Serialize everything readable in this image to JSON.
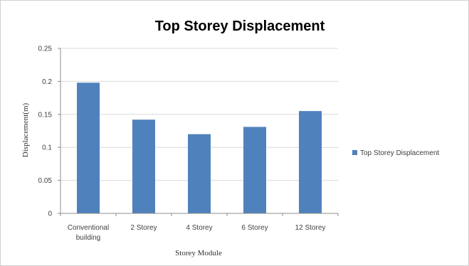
{
  "chart_data": {
    "type": "bar",
    "title": "Top Storey Displacement",
    "xlabel": "Storey Module",
    "ylabel": "Displacement(m)",
    "categories": [
      "Conventional building",
      "2 Storey",
      "4 Storey",
      "6 Storey",
      "12 Storey"
    ],
    "category_lines": [
      [
        "Conventional",
        "building"
      ],
      [
        "2 Storey"
      ],
      [
        "4 Storey"
      ],
      [
        "6 Storey"
      ],
      [
        "12 Storey"
      ]
    ],
    "series": [
      {
        "name": "Top Storey Displacement",
        "values": [
          0.198,
          0.142,
          0.12,
          0.131,
          0.155
        ],
        "color": "#4F81BD"
      }
    ],
    "ylim": [
      0,
      0.25
    ],
    "yticks": [
      "0",
      "0.05",
      "0.1",
      "0.15",
      "0.2",
      "0.25"
    ],
    "grid": true,
    "legend_position": "right"
  }
}
